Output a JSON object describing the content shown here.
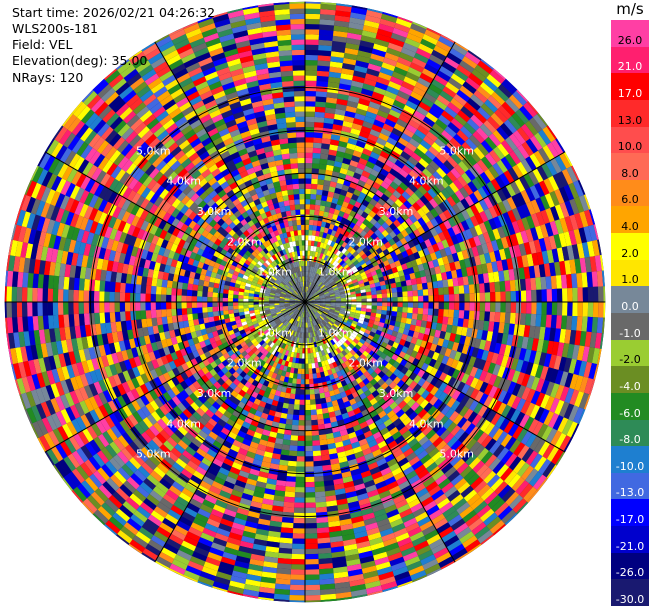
{
  "header": {
    "start_time": "Start time: 2026/02/21 04:26:32",
    "instrument": "WLS200s-181",
    "field": "Field: VEL",
    "elevation": "Elevation(deg): 35.00",
    "nrays": "NRays: 120"
  },
  "colorbar": {
    "unit": "m/s",
    "segments": [
      {
        "label": "26.0",
        "color": "#ff3fa4"
      },
      {
        "label": "21.0",
        "color": "#ff1f6f"
      },
      {
        "label": "17.0",
        "color": "#ff0000"
      },
      {
        "label": "13.0",
        "color": "#ff2a2a"
      },
      {
        "label": "10.0",
        "color": "#ff4d4d"
      },
      {
        "label": "8.0",
        "color": "#ff6a55"
      },
      {
        "label": "6.0",
        "color": "#ff8c1a"
      },
      {
        "label": "4.0",
        "color": "#ffa500"
      },
      {
        "label": "2.0",
        "color": "#ffff00"
      },
      {
        "label": "1.0",
        "color": "#ffe600"
      },
      {
        "label": "0.0",
        "color": "#778899"
      },
      {
        "label": "-1.0",
        "color": "#696969"
      },
      {
        "label": "-2.0",
        "color": "#9acd32"
      },
      {
        "label": "-4.0",
        "color": "#6b8e23"
      },
      {
        "label": "-6.0",
        "color": "#228b22"
      },
      {
        "label": "-8.0",
        "color": "#2e8b57"
      },
      {
        "label": "-10.0",
        "color": "#1e7fd0"
      },
      {
        "label": "-13.0",
        "color": "#4169e1"
      },
      {
        "label": "-17.0",
        "color": "#0000ff"
      },
      {
        "label": "-21.0",
        "color": "#0000cd"
      },
      {
        "label": "-26.0",
        "color": "#000080"
      },
      {
        "label": "-30.0",
        "color": "#191970"
      }
    ]
  },
  "chart_data": {
    "type": "heatmap",
    "projection": "polar PPI",
    "field": "VEL",
    "units": "m/s",
    "nrays": 120,
    "range_rings_km": [
      1.0,
      2.0,
      3.0,
      4.0,
      5.0
    ],
    "ring_labels": [
      "1.0km",
      "2.0km",
      "3.0km",
      "4.0km",
      "5.0km"
    ],
    "azimuth_spokes_deg": [
      0,
      30,
      60,
      90,
      120,
      150,
      180,
      210,
      240,
      270,
      300,
      330
    ],
    "max_range_km": 7.0,
    "inner_region": {
      "range_km": [
        0,
        1.0
      ],
      "velocity_mps": [
        -2.0,
        1.0
      ]
    },
    "outer_region": {
      "range_km": [
        1.0,
        7.0
      ],
      "velocity_mps": "noise, full scale -30.0 to 26.0"
    }
  }
}
